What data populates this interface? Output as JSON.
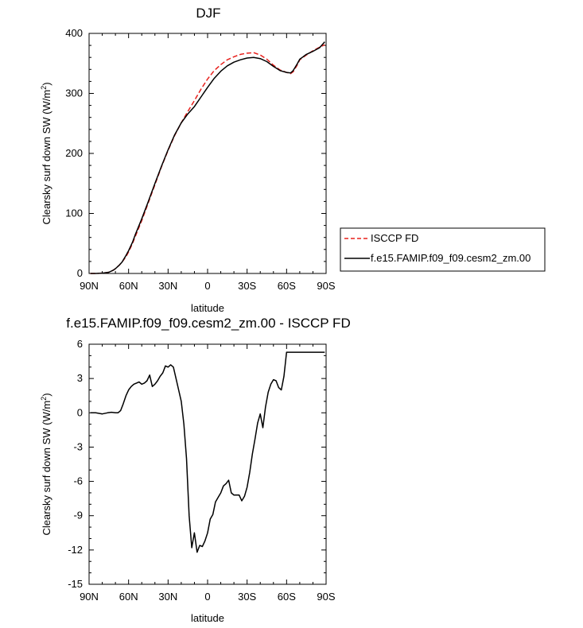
{
  "chart_data": [
    {
      "type": "line",
      "title": "DJF",
      "xlabel": "latitude",
      "ylabel": "Clearsky surf down SW (W/m",
      "ylabel_sup": "2",
      "ylabel_tail": ")",
      "xlim": [
        -90,
        90
      ],
      "ylim": [
        0,
        400
      ],
      "xticks": [
        -90,
        -60,
        -30,
        0,
        30,
        60,
        90
      ],
      "xtick_labels": [
        "90N",
        "60N",
        "30N",
        "0",
        "30S",
        "60S",
        "90S"
      ],
      "yticks": [
        0,
        100,
        200,
        300,
        400
      ],
      "ytick_labels": [
        "0",
        "100",
        "200",
        "300",
        "400"
      ],
      "legend": {
        "placement": "right",
        "entries": [
          "ISCCP FD",
          "f.e15.FAMIP.f09_f09.cesm2_zm.00"
        ]
      },
      "series": [
        {
          "name": "ISCCP FD",
          "color": "#e8201c",
          "dash": "dashed",
          "x": [
            -89,
            -85,
            -80,
            -75,
            -72,
            -70,
            -67,
            -65,
            -62,
            -60,
            -57,
            -55,
            -50,
            -45,
            -40,
            -35,
            -30,
            -25,
            -20,
            -15,
            -10,
            -5,
            0,
            5,
            10,
            15,
            20,
            25,
            30,
            35,
            40,
            45,
            50,
            55,
            60,
            63,
            65,
            68,
            70,
            75,
            80,
            85,
            89
          ],
          "values": [
            0,
            0,
            0.5,
            2,
            5,
            8,
            14,
            19,
            28,
            36,
            50,
            61,
            88,
            118,
            148,
            178,
            205,
            230,
            251,
            270,
            288,
            307,
            324,
            338,
            348,
            356,
            361,
            365,
            367,
            368,
            364,
            357,
            347,
            339,
            335,
            333,
            336,
            347,
            356,
            364,
            371,
            377,
            381
          ]
        },
        {
          "name": "f.e15.FAMIP.f09_f09.cesm2_zm.00",
          "color": "#000000",
          "dash": "solid",
          "x": [
            -89,
            -85,
            -80,
            -75,
            -72,
            -70,
            -67,
            -65,
            -62,
            -60,
            -57,
            -55,
            -50,
            -45,
            -40,
            -35,
            -30,
            -25,
            -20,
            -15,
            -10,
            -5,
            0,
            5,
            10,
            15,
            20,
            25,
            30,
            35,
            40,
            45,
            50,
            55,
            60,
            63,
            65,
            68,
            70,
            75,
            80,
            85,
            89
          ],
          "values": [
            0,
            0,
            0.5,
            2,
            5,
            8,
            14,
            19,
            30,
            38,
            52,
            64,
            91,
            120,
            150,
            179,
            206,
            231,
            251,
            266,
            278,
            294,
            310,
            325,
            337,
            346,
            352,
            356,
            359,
            360,
            358,
            353,
            345,
            338,
            335,
            334,
            338,
            349,
            357,
            365,
            370,
            376,
            386
          ]
        }
      ]
    },
    {
      "type": "line",
      "title": "f.e15.FAMIP.f09_f09.cesm2_zm.00 - ISCCP FD",
      "xlabel": "latitude",
      "ylabel": "Clearsky surf down SW (W/m",
      "ylabel_sup": "2",
      "ylabel_tail": ")",
      "xlim": [
        -90,
        90
      ],
      "ylim": [
        -15,
        6
      ],
      "xticks": [
        -90,
        -60,
        -30,
        0,
        30,
        60,
        90
      ],
      "xtick_labels": [
        "90N",
        "60N",
        "30N",
        "0",
        "30S",
        "60S",
        "90S"
      ],
      "yticks": [
        -15,
        -12,
        -9,
        -6,
        -3,
        0,
        3,
        6
      ],
      "ytick_labels": [
        "-15",
        "-12",
        "-9",
        "-6",
        "-3",
        "0",
        "3",
        "6"
      ],
      "series": [
        {
          "color": "#000000",
          "dash": "solid",
          "x": [
            -89,
            -85,
            -80,
            -76,
            -73,
            -70,
            -68,
            -66,
            -64,
            -62,
            -60,
            -58,
            -56,
            -54,
            -52,
            -50,
            -48,
            -46,
            -44,
            -42,
            -40,
            -38,
            -36,
            -34,
            -32,
            -30,
            -28,
            -26,
            -24,
            -22,
            -20,
            -18,
            -16,
            -14,
            -12,
            -10,
            -8,
            -6,
            -4,
            -2,
            0,
            2,
            4,
            6,
            8,
            10,
            12,
            14,
            16,
            18,
            20,
            22,
            24,
            26,
            28,
            30,
            32,
            34,
            36,
            38,
            40,
            42,
            44,
            46,
            48,
            50,
            52,
            54,
            56,
            58,
            60,
            62,
            64,
            66,
            68,
            70,
            72,
            74,
            76,
            78,
            80,
            82,
            84,
            86,
            88,
            89
          ],
          "values": [
            0,
            0,
            -0.1,
            0,
            0.05,
            0,
            0,
            0.2,
            0.8,
            1.5,
            2.0,
            2.3,
            2.5,
            2.6,
            2.7,
            2.5,
            2.6,
            2.8,
            3.3,
            2.3,
            2.5,
            2.8,
            3.2,
            3.5,
            4.1,
            4.0,
            4.2,
            4.0,
            3.0,
            2.0,
            1.0,
            -1.0,
            -4.0,
            -9.0,
            -11.8,
            -10.5,
            -12.2,
            -11.6,
            -11.7,
            -11.2,
            -10.5,
            -9.3,
            -8.9,
            -7.8,
            -7.4,
            -7.0,
            -6.4,
            -6.2,
            -5.9,
            -7.0,
            -7.2,
            -7.2,
            -7.2,
            -7.7,
            -7.3,
            -6.5,
            -5.2,
            -3.6,
            -2.3,
            -0.9,
            -0.1,
            -1.3,
            0.5,
            1.8,
            2.5,
            2.9,
            2.8,
            2.2,
            2.0,
            3.2,
            5.3,
            5.3,
            5.3,
            5.3,
            5.3,
            5.3,
            5.3,
            5.3,
            5.3,
            5.3,
            5.3,
            5.3,
            5.3,
            5.3,
            5.3,
            5.3
          ]
        }
      ]
    }
  ]
}
